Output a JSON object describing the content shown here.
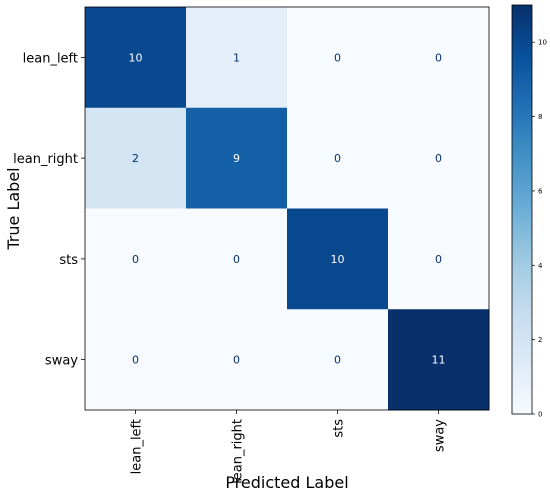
{
  "chart_data": {
    "type": "heatmap",
    "title": "",
    "xlabel": "Predicted Label",
    "ylabel": "True Label",
    "x_categories": [
      "lean_left",
      "lean_right",
      "sts",
      "sway"
    ],
    "y_categories": [
      "lean_left",
      "lean_right",
      "sts",
      "sway"
    ],
    "values": [
      [
        10,
        1,
        0,
        0
      ],
      [
        2,
        9,
        0,
        0
      ],
      [
        0,
        0,
        10,
        0
      ],
      [
        0,
        0,
        0,
        11
      ]
    ],
    "colormap": "Blues",
    "colorbar": {
      "range": [
        0,
        11
      ],
      "ticks": [
        0,
        2,
        4,
        6,
        8,
        10
      ]
    },
    "x_tick_rotation": "vertical"
  }
}
